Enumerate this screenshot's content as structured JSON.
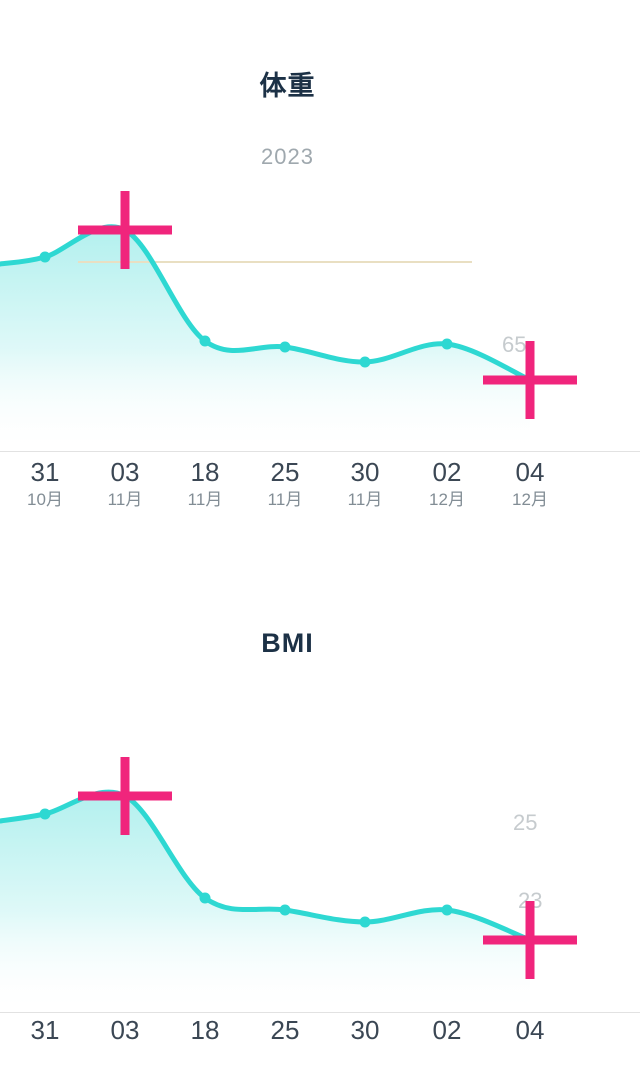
{
  "charts": [
    {
      "title": "体重",
      "year": "2023",
      "x_labels": [
        {
          "day": "31",
          "month": "10月"
        },
        {
          "day": "03",
          "month": "11月"
        },
        {
          "day": "18",
          "month": "11月"
        },
        {
          "day": "25",
          "month": "11月"
        },
        {
          "day": "30",
          "month": "11月"
        },
        {
          "day": "02",
          "month": "12月"
        },
        {
          "day": "04",
          "month": "12月"
        }
      ],
      "value_labels": [
        "65"
      ],
      "selected_indices": [
        1,
        6
      ]
    },
    {
      "title": "BMI",
      "x_labels": [
        {
          "day": "31"
        },
        {
          "day": "03"
        },
        {
          "day": "18"
        },
        {
          "day": "25"
        },
        {
          "day": "30"
        },
        {
          "day": "02"
        },
        {
          "day": "04"
        }
      ],
      "value_labels": [
        "25",
        "23"
      ],
      "selected_indices": [
        1,
        6
      ]
    }
  ],
  "chart_data": [
    {
      "type": "line",
      "title": "体重",
      "subtitle": "2023",
      "categories": [
        "10-31",
        "11-03",
        "11-18",
        "11-25",
        "11-30",
        "12-02",
        "12-04"
      ],
      "values": [
        68.1,
        69.0,
        65.3,
        65.1,
        64.6,
        65.2,
        64.0
      ],
      "ylim": [
        62,
        70
      ],
      "grid": false,
      "legend": false,
      "area_fill": true,
      "selected_points": [
        "11-03",
        "12-04"
      ]
    },
    {
      "type": "line",
      "title": "BMI",
      "categories": [
        "10-31",
        "11-03",
        "11-18",
        "11-25",
        "11-30",
        "12-02",
        "12-04"
      ],
      "values": [
        25.1,
        25.4,
        23.7,
        23.5,
        23.3,
        23.5,
        23.0
      ],
      "ylim": [
        22,
        26
      ],
      "grid": false,
      "legend": false,
      "area_fill": true,
      "selected_points": [
        "11-03",
        "12-04"
      ]
    }
  ],
  "colors": {
    "line": "#2ed8d2",
    "area_top": "#7fe6e3",
    "cross": "#f0257c",
    "title_text": "#1c3146",
    "year_text": "#9fa8ae",
    "day_text": "#3b4754",
    "month_text": "#828d95",
    "axis_line": "#e2e2e2",
    "goal_line": "#e9dfc2",
    "value_label_text": "#c6cbce"
  }
}
